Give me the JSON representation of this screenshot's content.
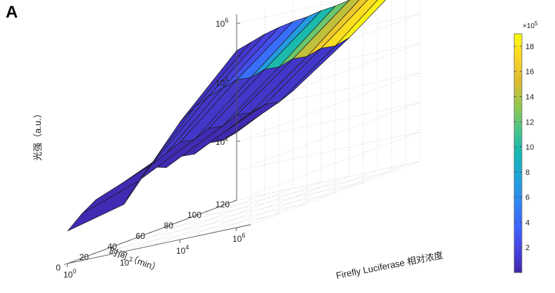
{
  "panel_label": "A",
  "chart_data": {
    "type": "surface",
    "zlabel": "光强（a.u.）",
    "ylabel": "时间 （min）",
    "xlabel": "Firefly Luciferase 相对浓度",
    "zscale": "log",
    "zlim_log10": [
      0,
      6.3
    ],
    "x_log10_samples": [
      0,
      2,
      4,
      6
    ],
    "y_min_samples": [
      0,
      10,
      20,
      30,
      40,
      50,
      60,
      70,
      80,
      90,
      100,
      110,
      120
    ],
    "x_ticks": [
      {
        "base": "10",
        "exp": "0"
      },
      {
        "base": "10",
        "exp": "2"
      },
      {
        "base": "10",
        "exp": "4"
      },
      {
        "base": "10",
        "exp": "6"
      }
    ],
    "y_ticks": [
      "0",
      "20",
      "40",
      "60",
      "80",
      "100",
      "120"
    ],
    "z_ticks": [
      {
        "base": "10",
        "exp": "2"
      },
      {
        "base": "10",
        "exp": "4"
      },
      {
        "base": "10",
        "exp": "6"
      }
    ],
    "z_log10_intensity": [
      [
        1.1,
        1.5,
        1.8,
        1.9,
        2.0,
        1.9,
        2.2,
        2.0,
        2.2,
        2.1,
        2.3,
        2.2,
        2.3
      ],
      [
        1.6,
        2.2,
        2.6,
        2.8,
        3.0,
        2.9,
        3.1,
        3.0,
        3.2,
        3.1,
        3.2,
        3.1,
        3.3
      ],
      [
        4.0,
        4.3,
        4.5,
        4.6,
        4.7,
        4.6,
        4.7,
        4.6,
        4.7,
        4.6,
        4.7,
        4.6,
        4.7
      ],
      [
        6.0,
        6.1,
        6.2,
        6.25,
        6.27,
        6.25,
        6.28,
        6.26,
        6.28,
        6.27,
        6.28,
        6.27,
        6.28
      ]
    ],
    "intensity_peak_x1e5": [
      0.8,
      0.9,
      1.4,
      2.0,
      3.0,
      5.5,
      8.5,
      11.0,
      13.5,
      15.5,
      17.0,
      18.0,
      19.0
    ],
    "colorbar": {
      "multiplier": "×10",
      "multiplier_exp": "5",
      "ticks": [
        "2",
        "4",
        "6",
        "8",
        "10",
        "12",
        "14",
        "16",
        "18"
      ],
      "range": [
        0,
        19
      ],
      "colormap": "parula"
    },
    "grid": true
  }
}
